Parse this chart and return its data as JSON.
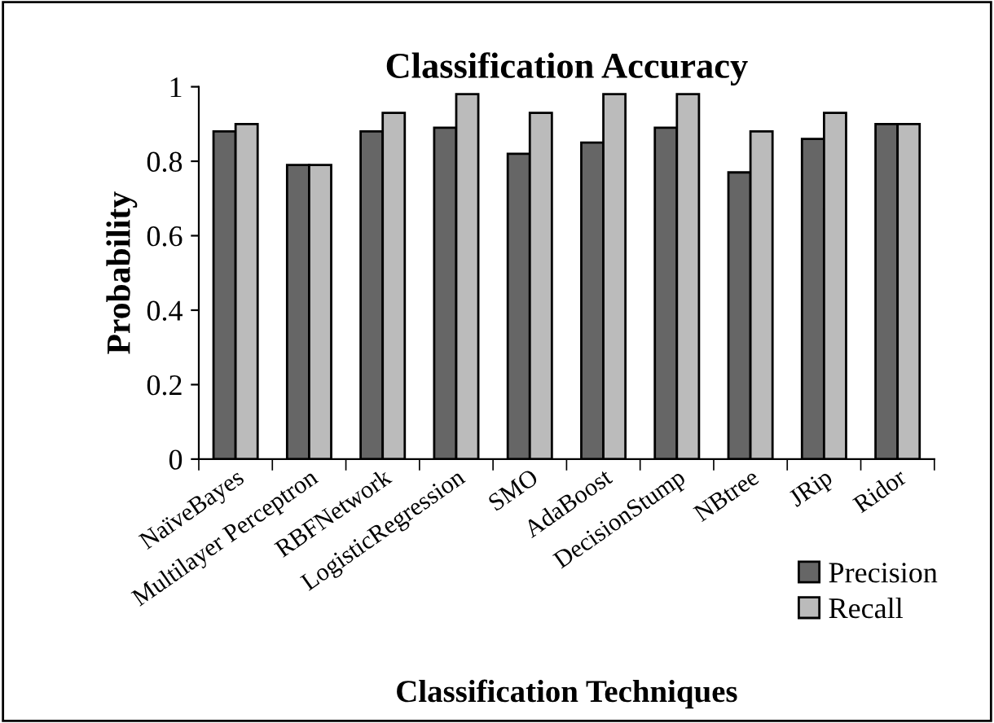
{
  "chart_data": {
    "type": "bar",
    "title": "Classification Accuracy",
    "xlabel": "Classification Techniques",
    "ylabel": "Probability",
    "categories": [
      "NaïveBayes",
      "Multilayer Perceptron",
      "RBFNetwork",
      "LogisticRegression",
      "SMO",
      "AdaBoost",
      "DecisionStump",
      "NBtree",
      "JRip",
      "Ridor"
    ],
    "series": [
      {
        "name": "Precision",
        "color": "#666666",
        "values": [
          0.88,
          0.79,
          0.88,
          0.89,
          0.82,
          0.85,
          0.89,
          0.77,
          0.86,
          0.9
        ]
      },
      {
        "name": "Recall",
        "color": "#bbbbbb",
        "values": [
          0.9,
          0.79,
          0.93,
          0.98,
          0.93,
          0.98,
          0.98,
          0.88,
          0.93,
          0.9
        ]
      }
    ],
    "ylim": [
      0,
      1
    ],
    "yticks": [
      0,
      0.2,
      0.4,
      0.6,
      0.8,
      1
    ],
    "grid": false,
    "legend": "bottom right"
  }
}
